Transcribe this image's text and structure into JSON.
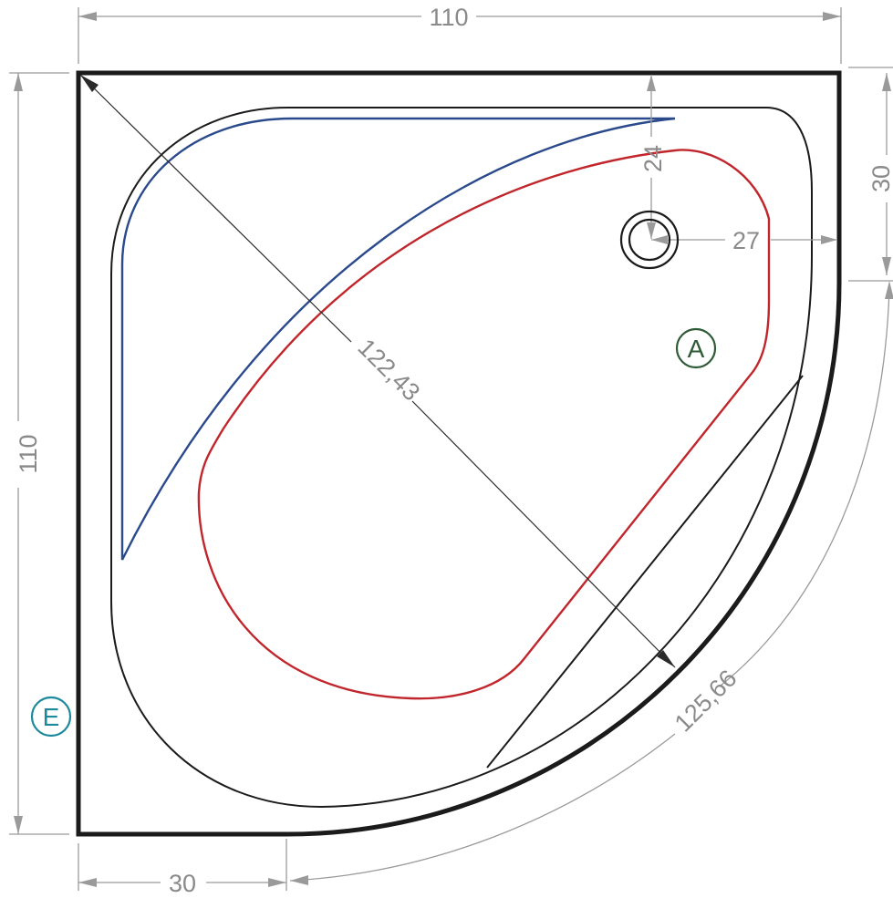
{
  "dimensions": {
    "top_width": "110",
    "left_height": "110",
    "bottom_offset": "30",
    "right_offset": "30",
    "diagonal": "122,43",
    "arc_length": "125,66",
    "drain_from_top": "24",
    "drain_from_right": "27"
  },
  "markers": {
    "a": {
      "label": "A",
      "color": "#2e5a36"
    },
    "e": {
      "label": "E",
      "color": "#1d8a9c"
    }
  },
  "colors": {
    "outline": "#1b1b1b",
    "dimension": "#9a9a9a",
    "seat_line": "#2a4a8c",
    "basin_line": "#c0262b"
  },
  "icons": {
    "drain": "drain-icon"
  }
}
